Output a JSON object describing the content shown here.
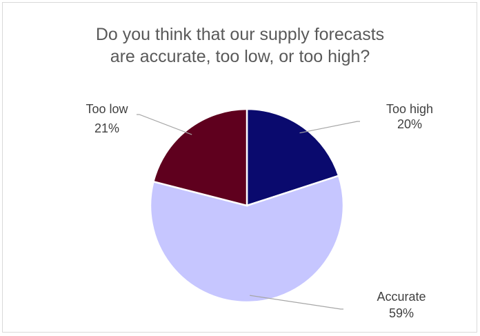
{
  "chart_data": {
    "type": "pie",
    "title": "Do you think that our supply forecasts are accurate, too low, or too high?",
    "title_lines": [
      "Do you think that our supply forecasts",
      "are accurate, too low, or too high?"
    ],
    "start_angle_deg": 0,
    "direction": "clockwise",
    "slices": [
      {
        "label": "Too high",
        "value": 20,
        "value_label": "20%",
        "color": "#0a0a6e"
      },
      {
        "label": "Accurate",
        "value": 59,
        "value_label": "59%",
        "color": "#c6c6ff"
      },
      {
        "label": "Too low",
        "value": 21,
        "value_label": "21%",
        "color": "#5f001e"
      }
    ],
    "legend": "none",
    "data_labels": "outside with leader lines",
    "leader_line_color": "#a6a6a6"
  }
}
